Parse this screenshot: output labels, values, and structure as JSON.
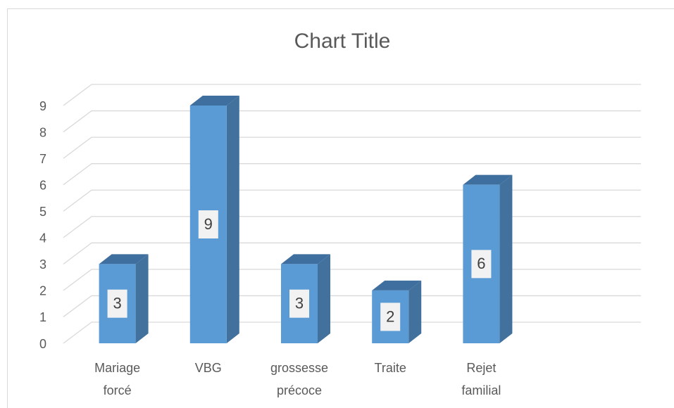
{
  "chart_data": {
    "type": "bar",
    "title": "Chart Title",
    "categories": [
      "Mariage forcé",
      "VBG",
      "grossesse précoce",
      "Traite",
      "Rejet familial"
    ],
    "values": [
      3,
      9,
      3,
      2,
      6
    ],
    "color": "#5b9bd5",
    "ylim": [
      0,
      9
    ],
    "yticks": [
      0,
      1,
      2,
      3,
      4,
      5,
      6,
      7,
      8,
      9
    ],
    "grid": true,
    "data_labels": true,
    "three_d": true
  }
}
